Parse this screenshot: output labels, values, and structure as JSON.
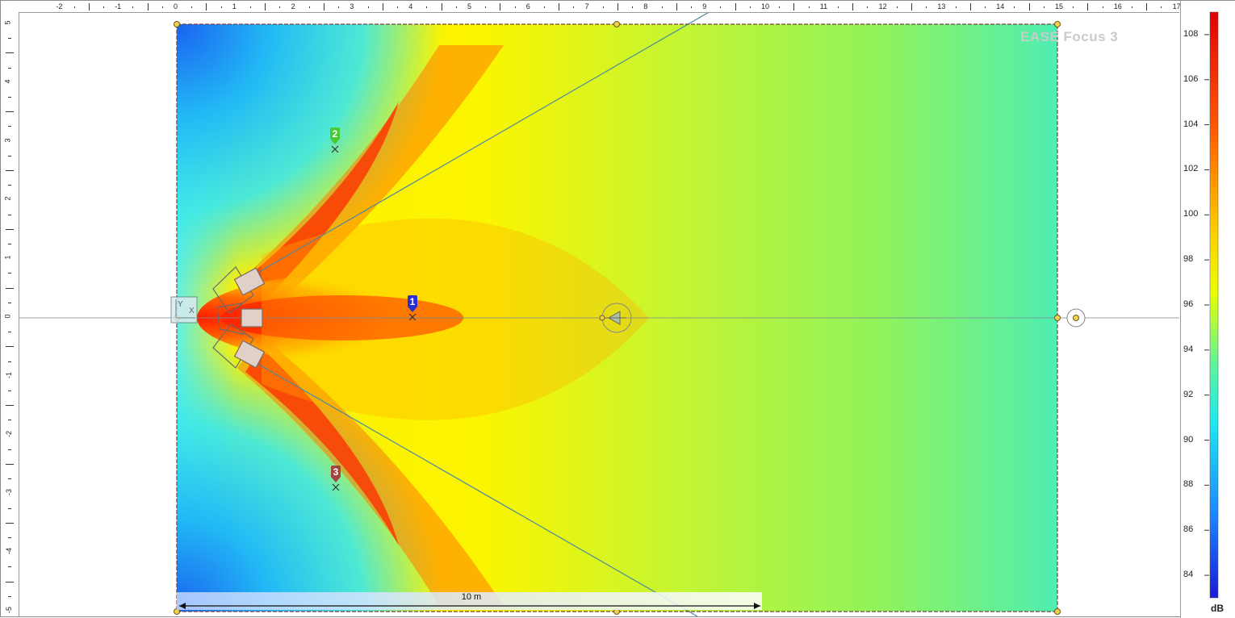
{
  "watermark": "EASE Focus 3",
  "ruler": {
    "top_labels": [
      "-2",
      "-1",
      "0",
      "1",
      "2",
      "3",
      "4",
      "5",
      "6",
      "7",
      "8",
      "9",
      "10",
      "11",
      "12",
      "13",
      "14",
      "15",
      "16",
      "17"
    ],
    "left_labels": [
      "5",
      "4",
      "3",
      "2",
      "1",
      "0",
      "-1",
      "-2",
      "-3",
      "-4",
      "-5"
    ]
  },
  "colorbar": {
    "unit": "dB",
    "labels": [
      "108",
      "106",
      "104",
      "102",
      "100",
      "98",
      "96",
      "94",
      "92",
      "90",
      "88",
      "86",
      "84"
    ],
    "min": 83,
    "max": 109
  },
  "scale_bar": {
    "label": "10 m"
  },
  "markers": [
    {
      "id": "1",
      "color": "#2b2fd0"
    },
    {
      "id": "2",
      "color": "#49c936"
    },
    {
      "id": "3",
      "color": "#a3443f"
    }
  ]
}
